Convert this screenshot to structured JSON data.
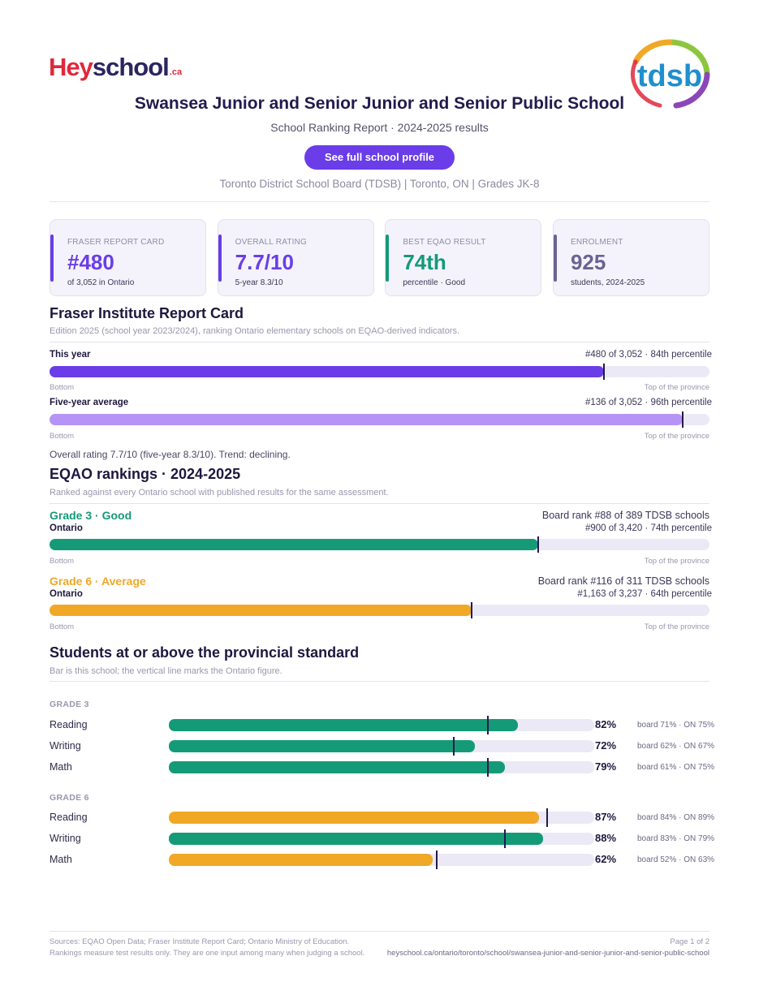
{
  "brand": {
    "logo_hey": "Hey",
    "logo_school": "school",
    "logo_ca": ".ca",
    "board_logo_text": "tdsb"
  },
  "header": {
    "title": "Swansea Junior and Senior Junior and Senior Public School",
    "subtitle": "School Ranking Report  ·  2024-2025 results",
    "profile_button": "See full school profile",
    "meta": "Toronto District School Board (TDSB)  |  Toronto, ON  |  Grades JK-8"
  },
  "cards": [
    {
      "label": "FRASER REPORT CARD",
      "value": "#480",
      "sub": "of 3,052 in Ontario",
      "color": "#6a3de8"
    },
    {
      "label": "OVERALL RATING",
      "value": "7.7/10",
      "sub": "5-year 8.3/10",
      "color": "#6a3de8"
    },
    {
      "label": "BEST EQAO RESULT",
      "value": "74th",
      "sub": "percentile  ·  Good",
      "color": "#159a78"
    },
    {
      "label": "ENROLMENT",
      "value": "925",
      "sub": "students, 2024-2025",
      "color": "#6b6391"
    }
  ],
  "fraser": {
    "heading": "Fraser Institute Report Card",
    "note": "Edition 2025 (school year 2023/2024), ranking Ontario elementary schools on EQAO-derived indicators.",
    "caption_bottom": "Bottom",
    "caption_top": "Top of the province",
    "rows": [
      {
        "label": "This year",
        "detail": "#480 of 3,052  ·  84th percentile",
        "percentile": 84,
        "color": "#6a3de8"
      },
      {
        "label": "Five-year average",
        "detail": "#136 of 3,052  ·  96th percentile",
        "percentile": 96,
        "color": "#b594f5"
      }
    ],
    "trend": "Overall rating 7.7/10 (five-year 8.3/10). Trend: declining."
  },
  "eqao": {
    "heading": "EQAO rankings  ·  2024-2025",
    "note": "Ranked against every Ontario school with published results for the same assessment.",
    "grades": [
      {
        "title": "Grade 3  ·  Good",
        "scope": "Ontario",
        "board_rank": "Board rank #88 of 389 TDSB schools",
        "detail": "#900 of 3,420  ·  74th percentile",
        "percentile": 74,
        "color": "#159a78"
      },
      {
        "title": "Grade 6  ·  Average",
        "scope": "Ontario",
        "board_rank": "Board rank #116 of 311 TDSB schools",
        "detail": "#1,163 of 3,237  ·  64th percentile",
        "percentile": 64,
        "color": "#f0a826"
      }
    ]
  },
  "standard": {
    "heading": "Students at or above the provincial standard",
    "note": "Bar is this school; the vertical line marks the Ontario figure.",
    "groups": [
      {
        "label": "GRADE 3",
        "subjects": [
          {
            "name": "Reading",
            "school": 82,
            "pct": "82%",
            "board": "board 71%",
            "ontario": 75,
            "compare": "ON 75%",
            "color": "#159a78"
          },
          {
            "name": "Writing",
            "school": 72,
            "pct": "72%",
            "board": "board 62%",
            "ontario": 67,
            "compare": "ON 67%",
            "color": "#159a78"
          },
          {
            "name": "Math",
            "school": 79,
            "pct": "79%",
            "board": "board 61%",
            "ontario": 75,
            "compare": "ON 75%",
            "color": "#159a78"
          }
        ]
      },
      {
        "label": "GRADE 6",
        "subjects": [
          {
            "name": "Reading",
            "school": 87,
            "pct": "87%",
            "board": "board 84%",
            "ontario": 89,
            "compare": "ON 89%",
            "color": "#f0a826"
          },
          {
            "name": "Writing",
            "school": 88,
            "pct": "88%",
            "board": "board 83%",
            "ontario": 79,
            "compare": "ON 79%",
            "color": "#159a78"
          },
          {
            "name": "Math",
            "school": 62,
            "pct": "62%",
            "board": "board 52%",
            "ontario": 63,
            "compare": "ON 63%",
            "color": "#f0a826"
          }
        ]
      }
    ]
  },
  "footer": {
    "sources": "Sources: EQAO Open Data; Fraser Institute Report Card; Ontario Ministry of Education.",
    "disclaimer": "Rankings measure test results only. They are one input among many when judging a school.",
    "page": "Page 1 of 2",
    "url": "heyschool.ca/ontario/toronto/school/swansea-junior-and-senior-junior-and-senior-public-school"
  }
}
